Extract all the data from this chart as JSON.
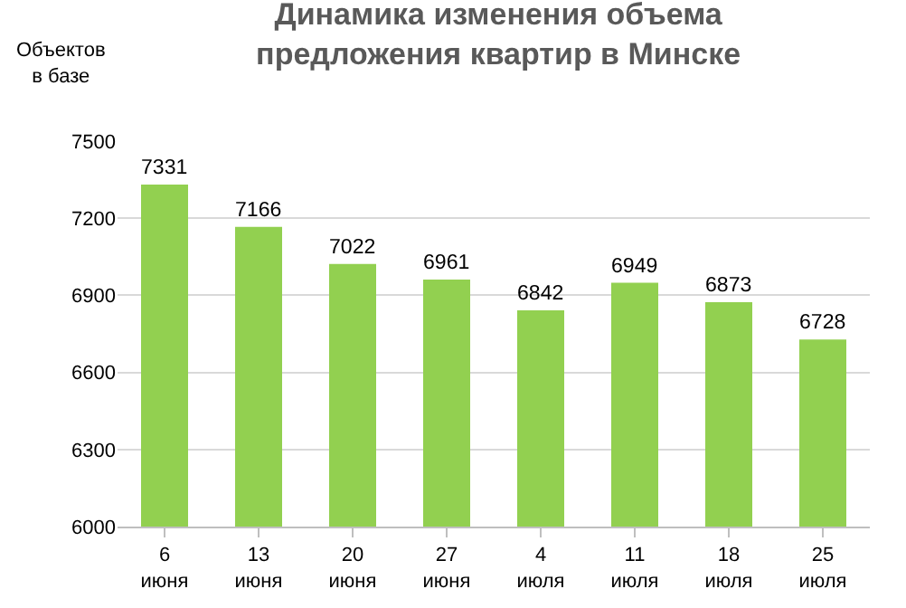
{
  "chart_data": {
    "type": "bar",
    "title": "Динамика изменения объема предложения квартир в Минске",
    "ylabel": "Объектов в базе",
    "categories": [
      "6 июня",
      "13 июня",
      "20 июня",
      "27 июня",
      "4 июля",
      "11 июля",
      "18 июля",
      "25 июля"
    ],
    "values": [
      7331,
      7166,
      7022,
      6961,
      6842,
      6949,
      6873,
      6728
    ],
    "color": "#92d050",
    "ylim": [
      6000,
      7500
    ],
    "yticks": [
      6000,
      6300,
      6600,
      6900,
      7200,
      7500
    ],
    "grid": "y",
    "data_labels": true
  }
}
